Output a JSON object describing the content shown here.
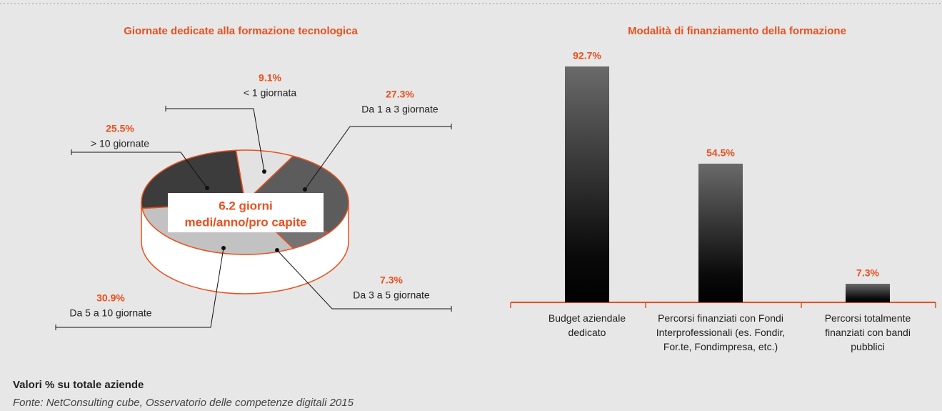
{
  "chart_data": [
    {
      "type": "pie3d",
      "title": "Giornate dedicate alla formazione tecnologica",
      "categories": [
        "< 1 giornata",
        "Da 1 a 3 giornate",
        "Da 3 a 5 giornate",
        "Da 5 a 10 giornate",
        "> 10 giornate"
      ],
      "values": [
        9.1,
        27.3,
        7.3,
        30.9,
        25.5
      ],
      "value_labels": [
        "9.1%",
        "27.3%",
        "7.3%",
        "30.9%",
        "25.5%"
      ],
      "colors": [
        "#e2e2e2",
        "#5c5c5c",
        "#747474",
        "#c2c2c2",
        "#3c3c3c"
      ],
      "annotation": [
        "6.2 giorni",
        "medi/anno/pro capite"
      ]
    },
    {
      "type": "bar",
      "title": "Modalità di finanziamento della formazione",
      "categories": [
        "Budget aziendale dedicato",
        "Percorsi finanziati con Fondi Interprofessionali (es. Fondir, For.te, Fondimpresa, etc.)",
        "Percorsi totalmente finanziati con bandi pubblici"
      ],
      "values": [
        92.7,
        54.5,
        7.3
      ],
      "value_labels": [
        "92.7%",
        "54.5%",
        "7.3%"
      ]
    }
  ],
  "notes": {
    "unit": "Valori % su totale aziende",
    "source": "Fonte: NetConsulting cube, Osservatorio delle competenze digitali 2015"
  }
}
